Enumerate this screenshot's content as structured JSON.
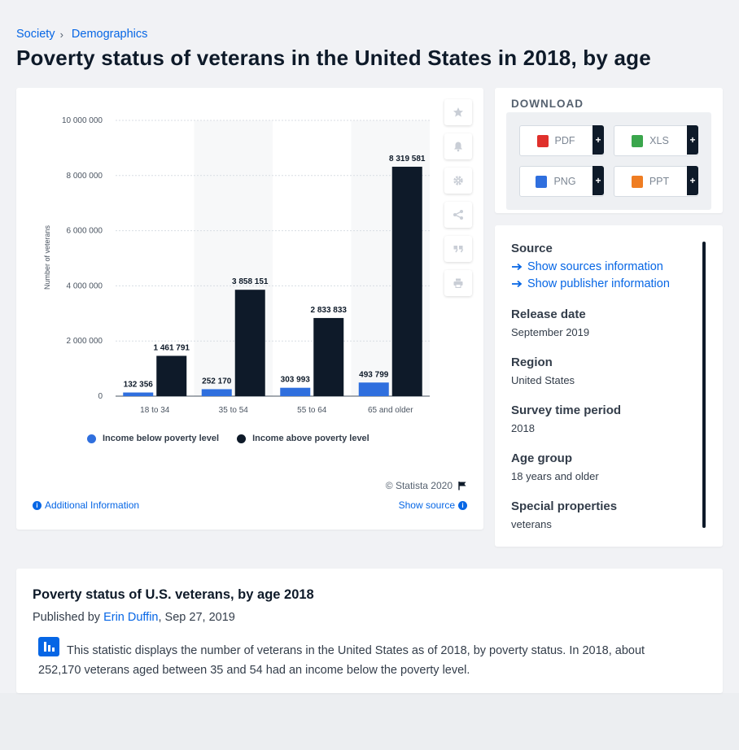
{
  "breadcrumb": {
    "items": [
      "Society",
      "Demographics"
    ]
  },
  "page_title": "Poverty status of veterans in the United States in 2018, by age",
  "chart_data": {
    "type": "bar",
    "categories": [
      "18 to 34",
      "35 to 54",
      "55 to 64",
      "65 and older"
    ],
    "series": [
      {
        "name": "Income below poverty level",
        "values": [
          132356,
          252170,
          303993,
          493799
        ],
        "labels": [
          "132 356",
          "252 170",
          "303 993",
          "493 799"
        ],
        "color": "#2f6fde"
      },
      {
        "name": "Income above poverty level",
        "values": [
          1461791,
          3858151,
          2833833,
          8319581
        ],
        "labels": [
          "1 461 791",
          "3 858 151",
          "2 833 833",
          "8 319 581"
        ],
        "color": "#0e1a29"
      }
    ],
    "ylabel": "Number of veterans",
    "ylim": [
      0,
      10000000
    ],
    "yticks": [
      0,
      2000000,
      4000000,
      6000000,
      8000000,
      10000000
    ],
    "ytick_labels": [
      "0",
      "2 000 000",
      "4 000 000",
      "6 000 000",
      "8 000 000",
      "10 000 000"
    ],
    "grid": true,
    "legend_position": "bottom"
  },
  "chart_footer": {
    "copyright": "© Statista 2020",
    "additional_info": "Additional Information",
    "show_source": "Show source"
  },
  "tools": [
    "star-icon",
    "bell-icon",
    "gear-icon",
    "share-icon",
    "quote-icon",
    "print-icon"
  ],
  "download": {
    "title": "DOWNLOAD",
    "buttons": [
      {
        "label": "PDF",
        "icon": "pdf-file-icon",
        "color": "#e0302c"
      },
      {
        "label": "XLS",
        "icon": "xls-file-icon",
        "color": "#3aa64c"
      },
      {
        "label": "PNG",
        "icon": "png-file-icon",
        "color": "#2f6fde"
      },
      {
        "label": "PPT",
        "icon": "ppt-file-icon",
        "color": "#ef7d22"
      }
    ],
    "plus": "+"
  },
  "info": {
    "source_heading": "Source",
    "show_sources": "Show sources information",
    "show_publisher": "Show publisher information",
    "release_heading": "Release date",
    "release_value": "September 2019",
    "region_heading": "Region",
    "region_value": "United States",
    "survey_heading": "Survey time period",
    "survey_value": "2018",
    "age_heading": "Age group",
    "age_value": "18 years and older",
    "special_heading": "Special properties",
    "special_value": "veterans"
  },
  "description": {
    "title": "Poverty status of U.S. veterans, by age 2018",
    "published_prefix": "Published by",
    "author": "Erin Duffin",
    "date": ", Sep 27, 2019",
    "text": "This statistic displays the number of veterans in the United States as of 2018, by poverty status. In 2018, about 252,170 veterans aged between 35 and 54 had an income below the poverty level."
  }
}
